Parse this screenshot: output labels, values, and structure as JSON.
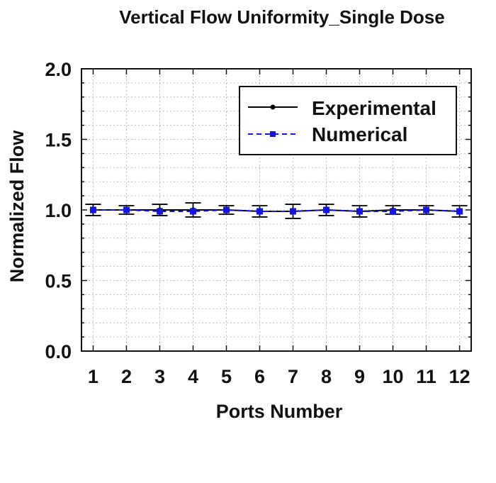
{
  "chart_data": {
    "type": "line",
    "title": "Vertical Flow Uniformity_Single Dose",
    "xlabel": "Ports Number",
    "ylabel": "Normalized Flow",
    "x": [
      1,
      2,
      3,
      4,
      5,
      6,
      7,
      8,
      9,
      10,
      11,
      12
    ],
    "xlim": [
      0.65,
      12.35
    ],
    "ylim": [
      0,
      2.0
    ],
    "yticks": [
      0.0,
      0.5,
      1.0,
      1.5,
      2.0
    ],
    "ytick_labels": [
      "0.0",
      "0.5",
      "1.0",
      "1.5",
      "2.0"
    ],
    "xtick_labels": [
      "1",
      "2",
      "3",
      "4",
      "5",
      "6",
      "7",
      "8",
      "9",
      "10",
      "11",
      "12"
    ],
    "grid": true,
    "legend_position": "top-right",
    "series": [
      {
        "name": "Experimental",
        "color": "#000000",
        "line_style": "solid",
        "marker": "circle",
        "values": [
          1.0,
          1.0,
          1.0,
          1.0,
          1.0,
          0.99,
          0.99,
          1.0,
          0.99,
          1.0,
          1.0,
          0.99
        ],
        "error": [
          0.04,
          0.03,
          0.04,
          0.05,
          0.03,
          0.04,
          0.05,
          0.04,
          0.04,
          0.03,
          0.03,
          0.04
        ]
      },
      {
        "name": "Numerical",
        "color": "#1414e6",
        "line_style": "dashed",
        "marker": "square",
        "values": [
          1.0,
          1.0,
          0.99,
          0.99,
          1.0,
          0.99,
          0.99,
          1.0,
          0.99,
          0.99,
          1.0,
          0.99
        ]
      }
    ]
  }
}
